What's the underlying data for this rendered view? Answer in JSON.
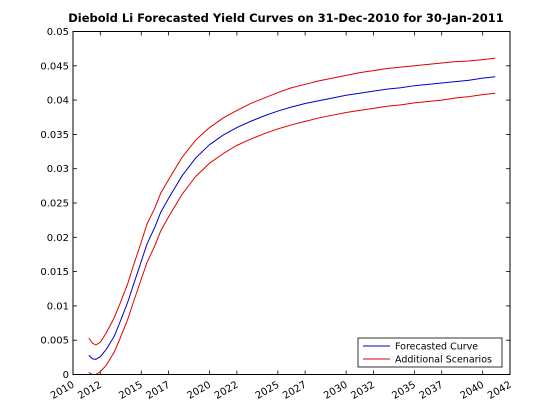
{
  "chart_data": {
    "type": "line",
    "title": "Diebold Li Forecasted Yield Curves on 31-Dec-2010 for 30-Jan-2011",
    "xlabel": "",
    "ylabel": "",
    "xlim": [
      "2010-01-01",
      "2042-01-01"
    ],
    "ylim": [
      0,
      0.05
    ],
    "x_ticks": [
      "2010",
      "2012",
      "2015",
      "2017",
      "2020",
      "2022",
      "2025",
      "2027",
      "2030",
      "2032",
      "2035",
      "2037",
      "2040",
      "2042"
    ],
    "x_tick_dates": [
      "2010-01-01",
      "2012-01-01",
      "2015-01-01",
      "2017-01-01",
      "2020-01-01",
      "2022-01-01",
      "2025-01-01",
      "2027-01-01",
      "2030-01-01",
      "2032-01-01",
      "2035-01-01",
      "2037-01-01",
      "2040-01-01",
      "2042-01-01"
    ],
    "y_ticks": [
      "0",
      "0.005",
      "0.01",
      "0.015",
      "0.02",
      "0.025",
      "0.03",
      "0.035",
      "0.04",
      "0.045",
      "0.05"
    ],
    "grid": false,
    "legend": {
      "position": "bottom-right",
      "entries": [
        "Forecasted Curve",
        "Additional Scenarios"
      ]
    },
    "x": [
      "2011-02-28",
      "2011-06-01",
      "2011-09-01",
      "2012-01-01",
      "2012-06-01",
      "2013-01-01",
      "2013-06-01",
      "2014-01-01",
      "2014-06-01",
      "2015-01-01",
      "2015-06-01",
      "2016-01-01",
      "2016-06-01",
      "2017-01-01",
      "2018-01-01",
      "2019-01-01",
      "2020-01-01",
      "2021-01-01",
      "2022-01-01",
      "2023-01-01",
      "2024-01-01",
      "2025-01-01",
      "2026-01-01",
      "2027-01-01",
      "2028-01-01",
      "2029-01-01",
      "2030-01-01",
      "2031-01-01",
      "2032-01-01",
      "2033-01-01",
      "2034-01-01",
      "2035-01-01",
      "2036-01-01",
      "2037-01-01",
      "2038-01-01",
      "2039-01-01",
      "2040-01-01",
      "2040-12-01"
    ],
    "series": [
      {
        "name": "Forecasted Curve",
        "color": "#0000cc",
        "values": [
          0.0028,
          0.0023,
          0.0022,
          0.0026,
          0.0036,
          0.0055,
          0.0075,
          0.0105,
          0.013,
          0.0165,
          0.019,
          0.0215,
          0.0236,
          0.0257,
          0.029,
          0.0316,
          0.0335,
          0.0349,
          0.036,
          0.0369,
          0.0377,
          0.0384,
          0.039,
          0.0395,
          0.0399,
          0.0403,
          0.0407,
          0.041,
          0.0413,
          0.0416,
          0.0418,
          0.0421,
          0.0423,
          0.0425,
          0.0427,
          0.0429,
          0.0432,
          0.0434
        ]
      },
      {
        "name": "Additional Scenarios",
        "color": "#e00000",
        "values": [
          0.0053,
          0.0046,
          0.0043,
          0.0047,
          0.006,
          0.0082,
          0.0102,
          0.0132,
          0.0158,
          0.0193,
          0.0219,
          0.0243,
          0.0264,
          0.0284,
          0.0317,
          0.0342,
          0.036,
          0.0374,
          0.0385,
          0.0395,
          0.0403,
          0.0411,
          0.0418,
          0.0423,
          0.0428,
          0.0432,
          0.0436,
          0.044,
          0.0443,
          0.0446,
          0.0448,
          0.045,
          0.0452,
          0.0454,
          0.0456,
          0.0457,
          0.0459,
          0.0461
        ]
      },
      {
        "name": "",
        "color": "#e00000",
        "values": [
          0.0003,
          0.0,
          0.0,
          0.0004,
          0.0013,
          0.0032,
          0.0051,
          0.008,
          0.0105,
          0.0139,
          0.0163,
          0.0188,
          0.0209,
          0.023,
          0.0263,
          0.0289,
          0.0308,
          0.0322,
          0.0334,
          0.0343,
          0.0351,
          0.0358,
          0.0364,
          0.0369,
          0.0374,
          0.0378,
          0.0382,
          0.0385,
          0.0388,
          0.0391,
          0.0393,
          0.0396,
          0.0398,
          0.04,
          0.0403,
          0.0405,
          0.0408,
          0.041
        ]
      }
    ]
  }
}
